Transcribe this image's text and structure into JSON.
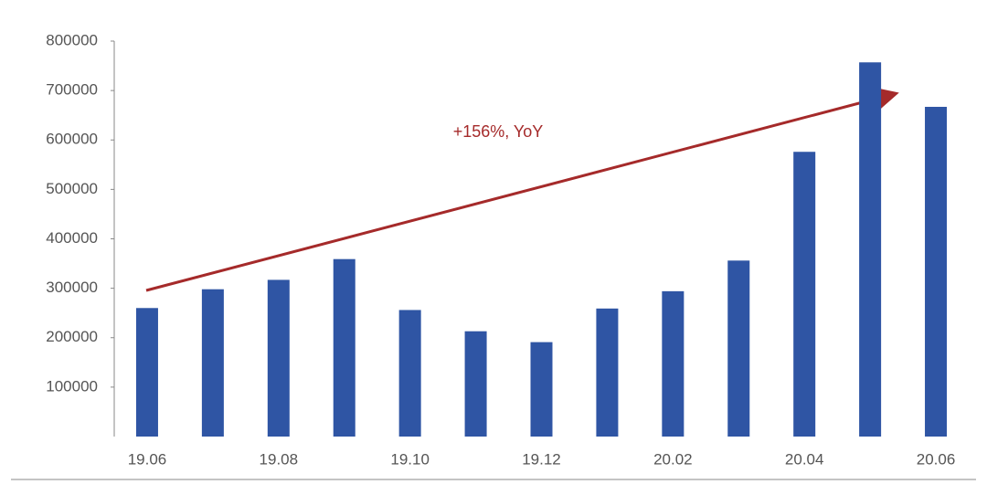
{
  "chart_data": {
    "type": "bar",
    "annotation": "+156%, YoY",
    "categories": [
      "19.06",
      null,
      "19.08",
      null,
      "19.10",
      null,
      "19.12",
      null,
      "20.02",
      null,
      "20.04",
      null,
      "20.06"
    ],
    "values": [
      260000,
      298000,
      317000,
      359000,
      256000,
      213000,
      191000,
      259000,
      294000,
      356000,
      576000,
      757000,
      667000
    ],
    "color": "#2f55a4",
    "ylim": [
      0,
      800000
    ],
    "yticks": [
      100000,
      200000,
      300000,
      400000,
      500000,
      600000,
      700000,
      800000
    ],
    "grid": false
  }
}
